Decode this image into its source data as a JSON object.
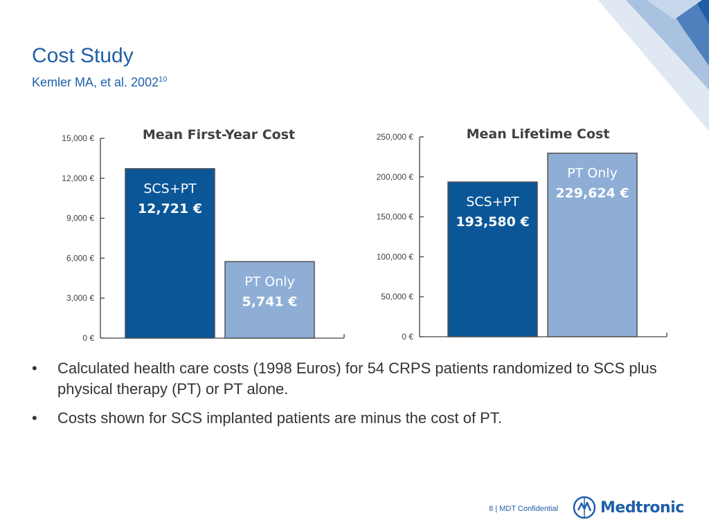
{
  "slide": {
    "title": "Cost Study",
    "subtitle": "Kemler MA, et al. 2002",
    "subtitle_ref": "10"
  },
  "bullets": [
    "Calculated health care costs (1998 Euros) for 54 CRPS patients randomized to SCS plus physical therapy (PT) or PT alone.",
    "Costs shown for SCS implanted patients are minus the cost of PT."
  ],
  "footer": {
    "page_number": "8",
    "separator": "|",
    "confidential": "MDT Confidential",
    "logo_text": "Medtronic",
    "logo_icon": "medtronic-logo-icon"
  },
  "colors": {
    "title_blue": "#1f5fa8",
    "scs_pt_bar": "#0b5697",
    "pt_only_bar": "#8eaed6",
    "bar_outline": "#505050"
  },
  "chart_data": [
    {
      "type": "bar",
      "title": "Mean First-Year Cost",
      "categories": [
        "SCS+PT",
        "PT Only"
      ],
      "values": [
        12721,
        5741
      ],
      "value_labels": [
        "12,721 €",
        "5,741 €"
      ],
      "ylim": [
        0,
        15000
      ],
      "yticks": [
        0,
        3000,
        6000,
        9000,
        12000,
        15000
      ],
      "ytick_labels": [
        "0 €",
        "3,000 €",
        "6,000 €",
        "9,000 €",
        "12,000 €",
        "15,000 €"
      ],
      "xlabel": "",
      "ylabel": "",
      "grid": false
    },
    {
      "type": "bar",
      "title": "Mean Lifetime Cost",
      "categories": [
        "SCS+PT",
        "PT Only"
      ],
      "values": [
        193580,
        229624
      ],
      "value_labels": [
        "193,580 €",
        "229,624 €"
      ],
      "ylim": [
        0,
        250000
      ],
      "yticks": [
        0,
        50000,
        100000,
        150000,
        200000,
        250000
      ],
      "ytick_labels": [
        "0 €",
        "50,000 €",
        "100,000 €",
        "150,000 €",
        "200,000 €",
        "250,000 €"
      ],
      "xlabel": "",
      "ylabel": "",
      "grid": false
    }
  ]
}
